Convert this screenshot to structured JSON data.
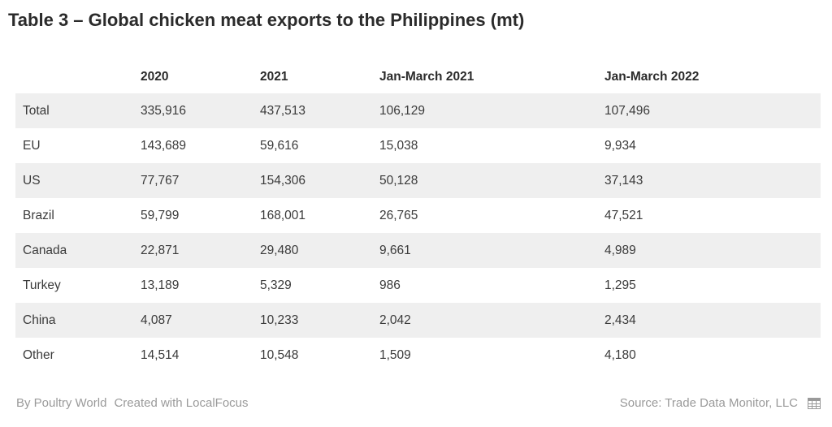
{
  "title": "Table 3 – Global chicken meat exports to the Philippines (mt)",
  "chart_data": {
    "type": "table",
    "title": "Table 3 – Global chicken meat exports to the Philippines (mt)",
    "columns": [
      "",
      "2020",
      "2021",
      "Jan-March 2021",
      "Jan-March 2022"
    ],
    "rows": [
      [
        "Total",
        "335,916",
        "437,513",
        "106,129",
        "107,496"
      ],
      [
        "EU",
        "143,689",
        "59,616",
        "15,038",
        "9,934"
      ],
      [
        "US",
        "77,767",
        "154,306",
        "50,128",
        "37,143"
      ],
      [
        "Brazil",
        "59,799",
        "168,001",
        "26,765",
        "47,521"
      ],
      [
        "Canada",
        "22,871",
        "29,480",
        "9,661",
        "4,989"
      ],
      [
        "Turkey",
        "13,189",
        "5,329",
        "986",
        "1,295"
      ],
      [
        "China",
        "4,087",
        "10,233",
        "2,042",
        "2,434"
      ],
      [
        "Other",
        "14,514",
        "10,548",
        "1,509",
        "4,180"
      ]
    ],
    "row_shading": "alternating",
    "shade_color": "#efefef"
  },
  "footer": {
    "author": "By Poultry World",
    "created_with": "Created with LocalFocus",
    "source": "Source: Trade Data Monitor, LLC",
    "icon": "table-icon"
  }
}
